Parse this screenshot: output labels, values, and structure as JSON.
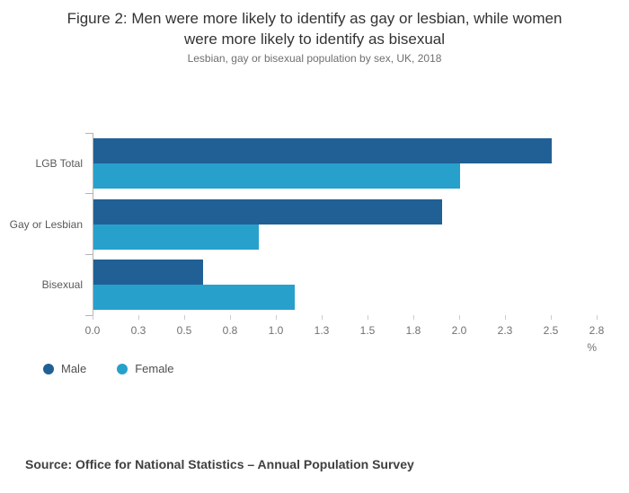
{
  "figure": {
    "title_lines": [
      "Figure 2: Men were more likely to identify as gay or lesbian, while women",
      "were more likely to identify as bisexual"
    ],
    "subtitle": "Lesbian, gay or bisexual population by sex, UK, 2018",
    "source": "Source: Office for National Statistics – Annual Population Survey"
  },
  "chart_data": {
    "type": "bar",
    "orientation": "horizontal",
    "title": "Figure 2: Men were more likely to identify as gay or lesbian, while women were more likely to identify as bisexual",
    "subtitle": "Lesbian, gay or bisexual population by sex, UK, 2018",
    "categories": [
      "LGB Total",
      "Gay or Lesbian",
      "Bisexual"
    ],
    "series": [
      {
        "name": "Male",
        "color": "#206095",
        "values": [
          2.5,
          1.9,
          0.6
        ]
      },
      {
        "name": "Female",
        "color": "#27a0cc",
        "values": [
          2.0,
          0.9,
          1.1
        ]
      }
    ],
    "x_ticks": [
      {
        "value": 0.0,
        "label": "0.0"
      },
      {
        "value": 0.25,
        "label": "0.3"
      },
      {
        "value": 0.5,
        "label": "0.5"
      },
      {
        "value": 0.75,
        "label": "0.8"
      },
      {
        "value": 1.0,
        "label": "1.0"
      },
      {
        "value": 1.25,
        "label": "1.3"
      },
      {
        "value": 1.5,
        "label": "1.5"
      },
      {
        "value": 1.75,
        "label": "1.8"
      },
      {
        "value": 2.0,
        "label": "2.0"
      },
      {
        "value": 2.25,
        "label": "2.3"
      },
      {
        "value": 2.5,
        "label": "2.5"
      },
      {
        "value": 2.75,
        "label": "2.8"
      }
    ],
    "xlim": [
      0,
      2.75
    ],
    "x_unit_label": "%",
    "ylabel": "",
    "xlabel": "%",
    "grid": false,
    "legend": [
      "Male",
      "Female"
    ],
    "legend_position": "bottom-left"
  }
}
